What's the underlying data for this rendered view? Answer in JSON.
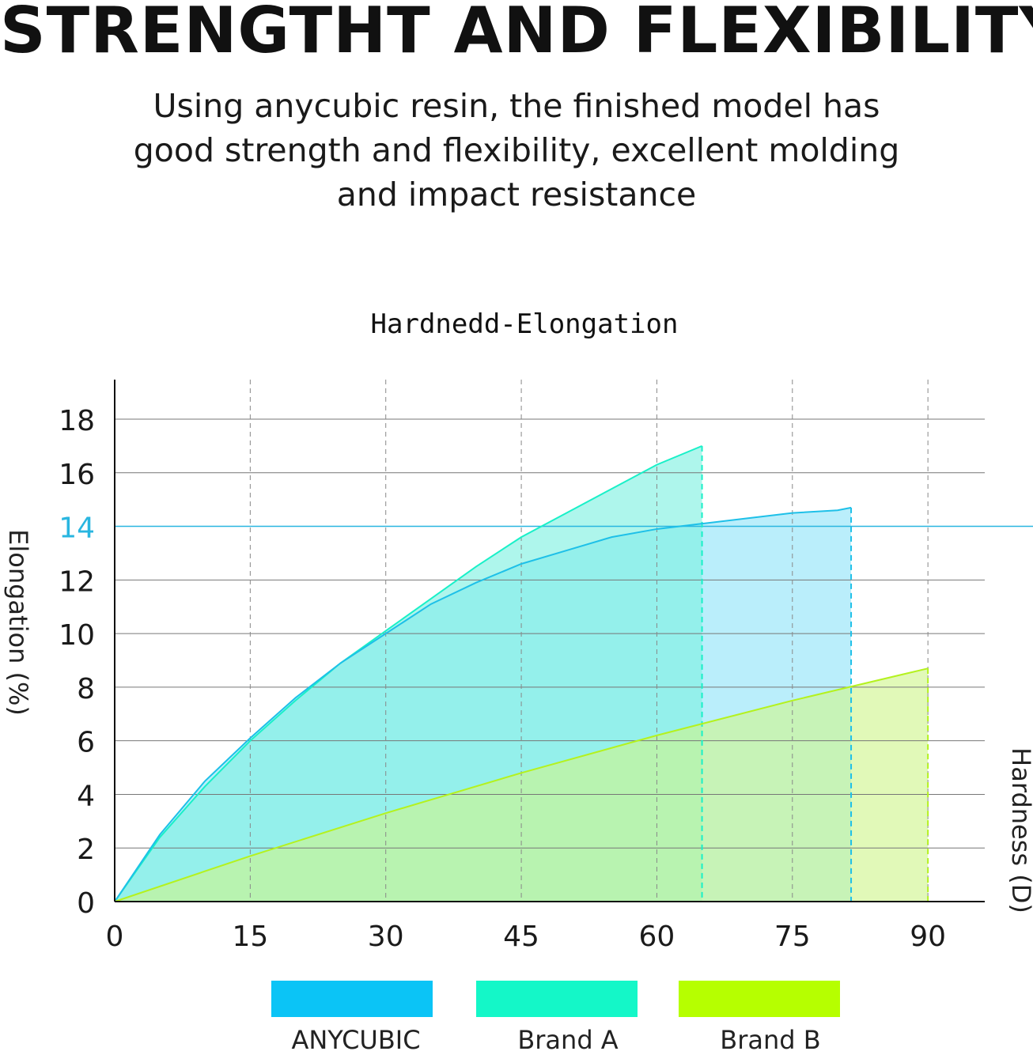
{
  "headline": "STRENGTHT AND FLEXIBILITY",
  "subtitle": "Using anycubic resin, the finished model has good strength and flexibility, excellent molding and impact resistance",
  "chart_data": {
    "type": "area",
    "title": "Hardnedd-Elongation",
    "ylabel": "Elongation (%)",
    "xlabel": "Hardness (D)",
    "xlim": [
      0,
      96
    ],
    "ylim": [
      0,
      19
    ],
    "x_ticks": [
      0,
      15,
      30,
      45,
      60,
      75,
      90
    ],
    "y_ticks": [
      0,
      2,
      4,
      6,
      8,
      10,
      12,
      14,
      16,
      18
    ],
    "highlight_tick": 14,
    "highlight_color": "#29b6e0",
    "grid": true,
    "legend_position": "bottom",
    "series": [
      {
        "name": "Brand A",
        "color": "#19f0c8",
        "fill": "#7df0e0",
        "x": [
          0,
          5,
          10,
          15,
          20,
          25,
          30,
          35,
          40,
          45,
          50,
          55,
          60,
          65
        ],
        "y": [
          0,
          2.4,
          4.3,
          6.0,
          7.5,
          8.9,
          10.1,
          11.3,
          12.5,
          13.6,
          14.5,
          15.4,
          16.3,
          17.0
        ]
      },
      {
        "name": "ANYCUBIC",
        "color": "#1ec0e8",
        "fill": "#8fe4f8",
        "x": [
          0,
          5,
          10,
          15,
          20,
          25,
          30,
          35,
          40,
          45,
          50,
          55,
          60,
          65,
          70,
          75,
          80,
          81.5
        ],
        "y": [
          0,
          2.5,
          4.5,
          6.1,
          7.6,
          8.9,
          10.0,
          11.1,
          11.9,
          12.6,
          13.1,
          13.6,
          13.9,
          14.1,
          14.3,
          14.5,
          14.6,
          14.7
        ]
      },
      {
        "name": "Brand B",
        "color": "#b4f21e",
        "fill": "#cff58c",
        "x": [
          0,
          15,
          30,
          45,
          60,
          75,
          90
        ],
        "y": [
          0,
          1.7,
          3.3,
          4.8,
          6.2,
          7.5,
          8.7
        ]
      }
    ]
  },
  "legend": [
    {
      "label": "ANYCUBIC",
      "color": "#0bc4f6"
    },
    {
      "label": "Brand A",
      "color": "#14f7c8"
    },
    {
      "label": "Brand B",
      "color": "#b6ff00"
    }
  ]
}
